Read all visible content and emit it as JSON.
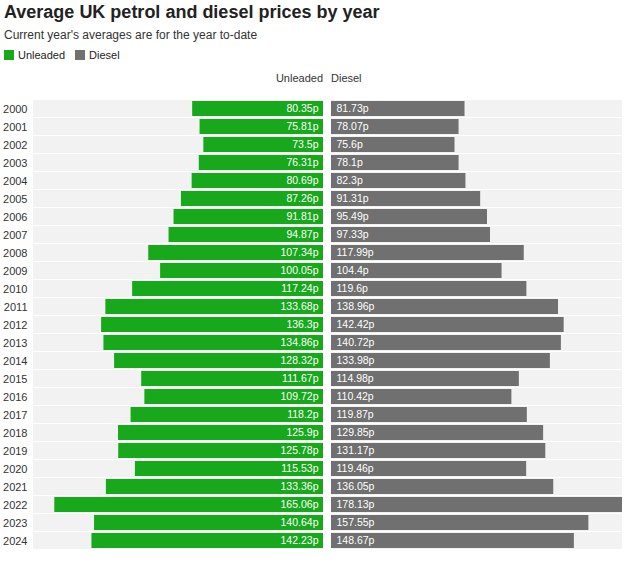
{
  "chart_data": {
    "type": "bar",
    "orientation": "horizontal",
    "title": "Average UK petrol and diesel prices by year",
    "subtitle": "Current year's averages are for the year to-date",
    "legend": "top-left",
    "data_labels": true,
    "tick_labels": "y",
    "categories": [
      "2000",
      "2001",
      "2002",
      "2003",
      "2004",
      "2005",
      "2006",
      "2007",
      "2008",
      "2009",
      "2010",
      "2011",
      "2012",
      "2013",
      "2014",
      "2015",
      "2016",
      "2017",
      "2018",
      "2019",
      "2020",
      "2021",
      "2022",
      "2023",
      "2024"
    ],
    "series": [
      {
        "name": "Unleaded",
        "color": "#17a81b",
        "values": [
          80.35,
          75.81,
          73.5,
          76.31,
          80.69,
          87.26,
          91.81,
          94.87,
          107.34,
          100.05,
          117.24,
          133.68,
          136.3,
          134.86,
          128.32,
          111.67,
          109.72,
          118.2,
          125.9,
          125.78,
          115.53,
          133.36,
          165.06,
          140.64,
          142.23
        ],
        "value_labels": [
          "80.35p",
          "75.81p",
          "73.5p",
          "76.31p",
          "80.69p",
          "87.26p",
          "91.81p",
          "94.87p",
          "107.34p",
          "100.05p",
          "117.24p",
          "133.68p",
          "136.3p",
          "134.86p",
          "128.32p",
          "111.67p",
          "109.72p",
          "118.2p",
          "125.9p",
          "125.78p",
          "115.53p",
          "133.36p",
          "165.06p",
          "140.64p",
          "142.23p"
        ]
      },
      {
        "name": "Diesel",
        "color": "#707070",
        "values": [
          81.73,
          78.07,
          75.6,
          78.1,
          82.3,
          91.31,
          95.49,
          97.33,
          117.99,
          104.4,
          119.6,
          138.96,
          142.42,
          140.72,
          133.98,
          114.98,
          110.42,
          119.87,
          129.85,
          131.17,
          119.46,
          136.05,
          178.13,
          157.55,
          148.67
        ],
        "value_labels": [
          "81.73p",
          "78.07p",
          "75.6p",
          "78.1p",
          "82.3p",
          "91.31p",
          "95.49p",
          "97.33p",
          "117.99p",
          "104.4p",
          "119.6p",
          "138.96p",
          "142.42p",
          "140.72p",
          "133.98p",
          "114.98p",
          "110.42p",
          "119.87p",
          "129.85p",
          "131.17p",
          "119.46p",
          "136.05p",
          "178.13p",
          "157.55p",
          "148.67p"
        ]
      }
    ]
  }
}
